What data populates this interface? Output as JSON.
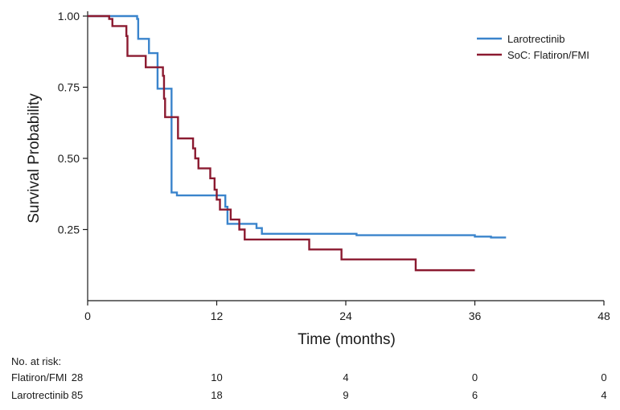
{
  "chart_data": {
    "type": "line",
    "subtype": "kaplan-meier step curve",
    "xlabel": "Time (months)",
    "ylabel": "Survival Probability",
    "xlim": [
      0,
      48
    ],
    "ylim": [
      0,
      1.0
    ],
    "xticks": [
      0,
      12,
      24,
      36,
      48
    ],
    "yticks": [
      0.25,
      0.5,
      0.75,
      1.0
    ],
    "xtick_labels": [
      "0",
      "12",
      "24",
      "36",
      "48"
    ],
    "ytick_labels": [
      "0.25",
      "0.50",
      "0.75",
      "1.00"
    ],
    "legend_position": "top-right",
    "series": [
      {
        "name": "Larotrectinib",
        "color": "#3a84cc",
        "steps": [
          [
            0,
            1.0
          ],
          [
            4.6,
            0.99
          ],
          [
            4.7,
            0.92
          ],
          [
            5.7,
            0.87
          ],
          [
            6.5,
            0.745
          ],
          [
            7.8,
            0.38
          ],
          [
            8.3,
            0.37
          ],
          [
            12.8,
            0.33
          ],
          [
            13.0,
            0.27
          ],
          [
            15.7,
            0.255
          ],
          [
            16.2,
            0.235
          ],
          [
            25.0,
            0.23
          ],
          [
            36.0,
            0.225
          ],
          [
            37.5,
            0.222
          ],
          [
            38.9,
            0.222
          ]
        ]
      },
      {
        "name": "SoC: Flatiron/FMI",
        "color": "#8b1a30",
        "steps": [
          [
            0,
            1.0
          ],
          [
            2.0,
            0.99
          ],
          [
            2.3,
            0.965
          ],
          [
            3.6,
            0.93
          ],
          [
            3.7,
            0.86
          ],
          [
            5.4,
            0.82
          ],
          [
            7.0,
            0.79
          ],
          [
            7.1,
            0.71
          ],
          [
            7.2,
            0.645
          ],
          [
            8.4,
            0.57
          ],
          [
            9.8,
            0.535
          ],
          [
            10.0,
            0.5
          ],
          [
            10.3,
            0.465
          ],
          [
            11.4,
            0.43
          ],
          [
            11.8,
            0.39
          ],
          [
            12.0,
            0.355
          ],
          [
            12.3,
            0.32
          ],
          [
            13.3,
            0.285
          ],
          [
            14.1,
            0.25
          ],
          [
            14.6,
            0.215
          ],
          [
            20.6,
            0.18
          ],
          [
            23.6,
            0.145
          ],
          [
            30.5,
            0.107
          ],
          [
            36.0,
            0.107
          ]
        ]
      }
    ]
  },
  "risk_table": {
    "header": "No. at risk:",
    "rows": [
      {
        "label": "Flatiron/FMI",
        "counts": [
          "28",
          "10",
          "4",
          "0",
          "0"
        ]
      },
      {
        "label": "Larotrectinib",
        "counts": [
          "85",
          "18",
          "9",
          "6",
          "4"
        ]
      }
    ]
  }
}
